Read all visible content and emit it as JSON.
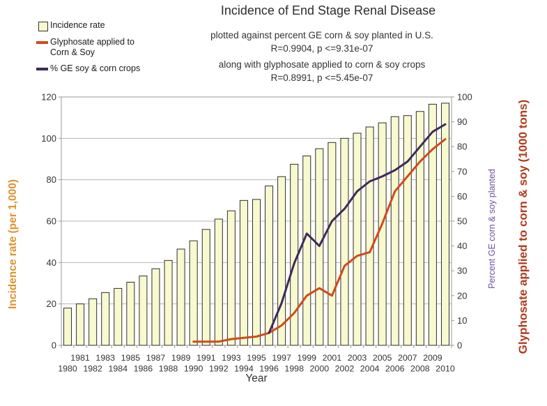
{
  "title": "Incidence of End Stage Renal Disease",
  "subtitle_lines": [
    "plotted against percent GE corn & soy planted in U.S.",
    "R=0.9904, p <=9.31e-07",
    "along with glyphosate applied to corn & soy crops",
    "R=0.8991, p <=5.45e-07"
  ],
  "legend": {
    "items": [
      {
        "label": "Incidence rate",
        "swatch": "bar-square",
        "color": "#f9f9cf"
      },
      {
        "label": "Glyphosate applied to",
        "label2": "Corn & Soy",
        "swatch": "line",
        "color": "#d04a1a"
      },
      {
        "label": "% GE soy & corn crops",
        "swatch": "line",
        "color": "#3e2a5c"
      }
    ]
  },
  "chart_data": {
    "type": "bar+line",
    "x_years": [
      1980,
      1981,
      1982,
      1983,
      1984,
      1985,
      1986,
      1987,
      1988,
      1989,
      1990,
      1991,
      1992,
      1993,
      1994,
      1995,
      1996,
      1997,
      1998,
      1999,
      2000,
      2001,
      2002,
      2003,
      2004,
      2005,
      2006,
      2007,
      2008,
      2009,
      2010
    ],
    "bar_series": {
      "name": "Incidence rate",
      "axis": "left",
      "values": [
        18,
        20,
        22.5,
        25.5,
        27.5,
        30.5,
        33.5,
        37,
        41,
        46.5,
        50.5,
        56,
        61,
        65,
        70,
        70.5,
        77,
        81.5,
        87.5,
        91.5,
        95,
        98,
        100,
        102.5,
        105.5,
        107.5,
        110.5,
        111,
        113,
        116.5,
        117
      ]
    },
    "line_series": [
      {
        "name": "Glyphosate applied to Corn & Soy",
        "axis": "right",
        "start_year": 1990,
        "values": [
          1.5,
          1.5,
          1.5,
          2.5,
          3,
          3.5,
          5,
          8,
          13,
          20,
          23,
          20,
          32,
          36,
          37.5,
          49,
          62,
          68,
          74,
          79,
          83
        ]
      },
      {
        "name": "% GE soy & corn crops",
        "axis": "right",
        "start_year": 1996,
        "values": [
          5,
          17,
          33,
          45,
          40,
          50,
          55,
          62,
          66,
          68,
          70.5,
          74,
          80,
          86,
          89
        ]
      }
    ],
    "left_axis": {
      "title": "Incidence rate (per 1,000)",
      "min": 0,
      "max": 120,
      "ticks": [
        0,
        20,
        40,
        60,
        80,
        100,
        120
      ]
    },
    "right_axis": {
      "min": 0,
      "max": 100,
      "ticks": [
        0,
        10,
        20,
        30,
        40,
        50,
        60,
        70,
        80,
        90,
        100
      ],
      "inner_title": "Percent GE corn & soy planted",
      "outer_title": "Glyphosate applied to corn & soy (1000 tons)"
    },
    "x_axis": {
      "title": "Year"
    },
    "grid": "horizontal every 20 left-units",
    "legend_position": "top-left",
    "colors": {
      "bar_fill": "#f9f9cf",
      "bar_border": "#2e2e2e",
      "glyphosate_line": "#d04a1a",
      "ge_line": "#3e2a5c",
      "left_title": "#e0912f",
      "right_inner_title": "#6f4fa1",
      "right_outer_title": "#b23a1c",
      "grid": "#b5b5b5",
      "axis": "#999999",
      "tick_text": "#333333"
    }
  }
}
